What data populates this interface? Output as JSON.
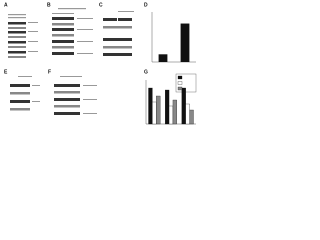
{
  "panels": [
    "A",
    "B",
    "C",
    "D",
    "E",
    "F",
    "G"
  ],
  "charts": [
    {
      "type": "bar",
      "categories": [
        null,
        null
      ],
      "values": [
        0.2,
        1.0
      ],
      "color": "#111",
      "ylim": [
        0,
        1.3
      ]
    },
    {
      "type": "bar",
      "categories": [
        null,
        null,
        null
      ],
      "series": [
        {
          "color": "#111",
          "values": [
            0.9,
            0.85,
            0.9
          ]
        },
        {
          "color": "#ffffff",
          "values": [
            0.55,
            0.45,
            0.5
          ]
        },
        {
          "color": "#888888",
          "values": [
            0.7,
            0.6,
            0.35
          ]
        }
      ],
      "ylim": [
        0,
        1.1
      ]
    }
  ]
}
